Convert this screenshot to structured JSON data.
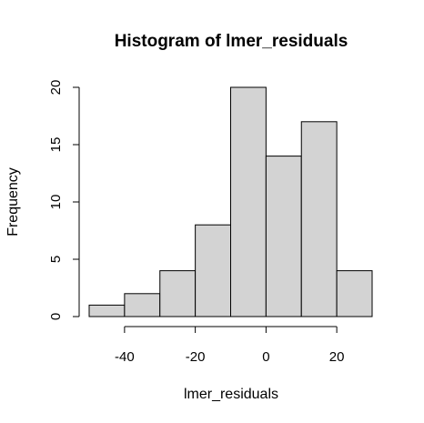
{
  "chart_data": {
    "type": "bar",
    "title": "Histogram of lmer_residuals",
    "xlabel": "lmer_residuals",
    "ylabel": "Frequency",
    "bins": [
      {
        "start": -50,
        "end": -40,
        "count": 1
      },
      {
        "start": -40,
        "end": -30,
        "count": 2
      },
      {
        "start": -30,
        "end": -20,
        "count": 4
      },
      {
        "start": -20,
        "end": -10,
        "count": 8
      },
      {
        "start": -10,
        "end": 0,
        "count": 20
      },
      {
        "start": 0,
        "end": 10,
        "count": 14
      },
      {
        "start": 10,
        "end": 20,
        "count": 17
      },
      {
        "start": 20,
        "end": 30,
        "count": 4
      }
    ],
    "xlim": [
      -50,
      30
    ],
    "ylim": [
      0,
      20
    ],
    "x_ticks": [
      -40,
      -20,
      0,
      20
    ],
    "y_ticks": [
      0,
      5,
      10,
      15,
      20
    ],
    "bar_color": "#d3d3d3",
    "edge_color": "#000000",
    "grid": false,
    "legend": "none"
  }
}
